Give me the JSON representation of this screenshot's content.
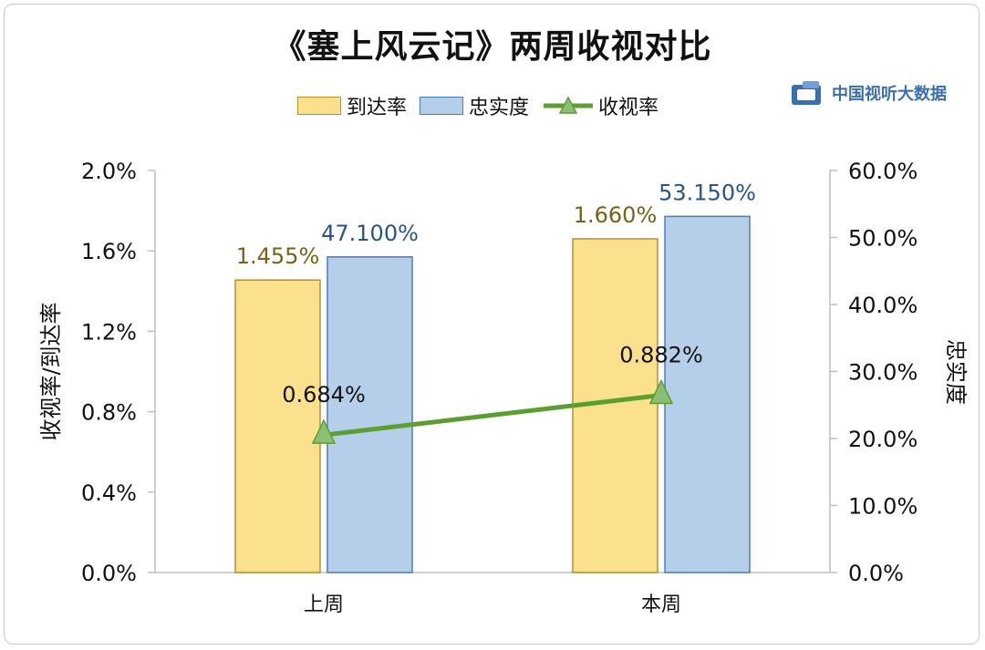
{
  "chart_data": {
    "type": "bar",
    "title": "《塞上风云记》两周收视对比",
    "categories": [
      "上周",
      "本周"
    ],
    "series": [
      {
        "name": "到达率",
        "kind": "bar",
        "axis": "left",
        "values": [
          1.455,
          1.66
        ],
        "labels": [
          "1.455%",
          "1.660%"
        ],
        "color": "#fbe08e",
        "stroke": "#b8902a",
        "label_color": "#7a6114"
      },
      {
        "name": "忠实度",
        "kind": "bar",
        "axis": "right",
        "values": [
          47.1,
          53.15
        ],
        "labels": [
          "47.100%",
          "53.150%"
        ],
        "color": "#b5cfeb",
        "stroke": "#4c7db8",
        "label_color": "#27548a"
      },
      {
        "name": "收视率",
        "kind": "line",
        "axis": "left",
        "values": [
          0.684,
          0.882
        ],
        "labels": [
          "0.684%",
          "0.882%"
        ],
        "color": "#5c9e2f",
        "marker_fill": "#8cbf73",
        "label_color": "#111111"
      }
    ],
    "y_left": {
      "label": "收视率/到达率",
      "min": 0,
      "max": 2.0,
      "ticks": [
        "0.0%",
        "0.4%",
        "0.8%",
        "1.2%",
        "1.6%",
        "2.0%"
      ]
    },
    "y_right": {
      "label": "忠实度",
      "min": 0,
      "max": 60,
      "ticks": [
        "0.0%",
        "10.0%",
        "20.0%",
        "30.0%",
        "40.0%",
        "50.0%",
        "60.0%"
      ]
    },
    "grid": false,
    "legend_position": "top"
  },
  "source": {
    "logo_text": "中国视听大数据",
    "logo_color": "#3a6fae"
  }
}
